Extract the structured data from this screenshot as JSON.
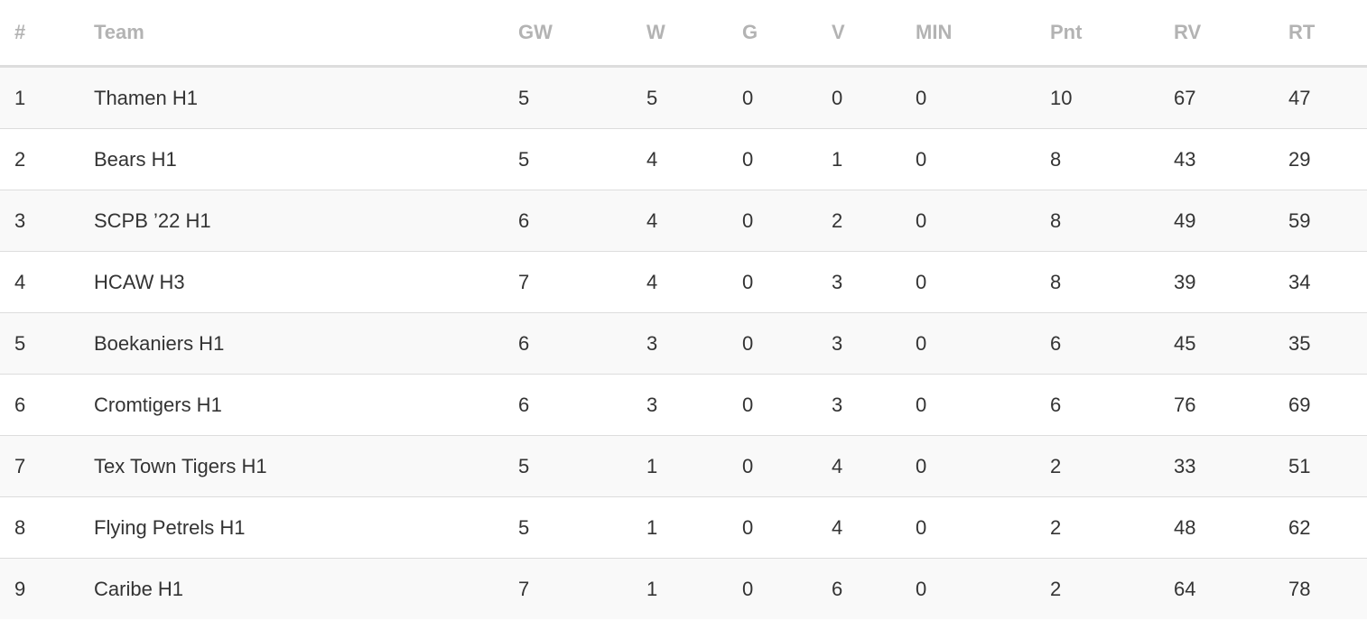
{
  "standings": {
    "headers": [
      "#",
      "Team",
      "GW",
      "W",
      "G",
      "V",
      "MIN",
      "Pnt",
      "RV",
      "RT"
    ],
    "rows": [
      [
        "1",
        "Thamen H1",
        "5",
        "5",
        "0",
        "0",
        "0",
        "10",
        "67",
        "47"
      ],
      [
        "2",
        "Bears H1",
        "5",
        "4",
        "0",
        "1",
        "0",
        "8",
        "43",
        "29"
      ],
      [
        "3",
        "SCPB ’22 H1",
        "6",
        "4",
        "0",
        "2",
        "0",
        "8",
        "49",
        "59"
      ],
      [
        "4",
        "HCAW H3",
        "7",
        "4",
        "0",
        "3",
        "0",
        "8",
        "39",
        "34"
      ],
      [
        "5",
        "Boekaniers H1",
        "6",
        "3",
        "0",
        "3",
        "0",
        "6",
        "45",
        "35"
      ],
      [
        "6",
        "Cromtigers H1",
        "6",
        "3",
        "0",
        "3",
        "0",
        "6",
        "76",
        "69"
      ],
      [
        "7",
        "Tex Town Tigers H1",
        "5",
        "1",
        "0",
        "4",
        "0",
        "2",
        "33",
        "51"
      ],
      [
        "8",
        "Flying Petrels H1",
        "5",
        "1",
        "0",
        "4",
        "0",
        "2",
        "48",
        "62"
      ],
      [
        "9",
        "Caribe H1",
        "7",
        "1",
        "0",
        "6",
        "0",
        "2",
        "64",
        "78"
      ]
    ]
  },
  "colors": {
    "header_text": "#b3b3b3",
    "body_text": "#333333",
    "row_stripe": "#f9f9f9",
    "divider": "#dddddd"
  }
}
